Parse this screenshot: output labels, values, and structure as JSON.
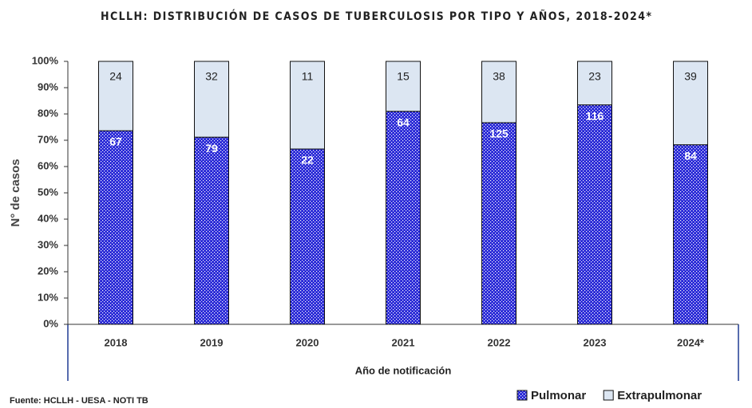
{
  "chart_data": {
    "type": "bar",
    "stacking": "percent",
    "title": "HCLLH: DISTRIBUCIÓN DE CASOS DE TUBERCULOSIS POR TIPO Y AÑOS, 2018-2024*",
    "x_label": "Año de notificación",
    "y_label": "N° de casos",
    "source": "Fuente: HCLLH - UESA - NOTI TB",
    "categories": [
      "2018",
      "2019",
      "2020",
      "2021",
      "2022",
      "2023",
      "2024*"
    ],
    "series": [
      {
        "name": "Pulmonar",
        "color": "#2626d6",
        "values": [
          67,
          79,
          22,
          64,
          125,
          116,
          84
        ]
      },
      {
        "name": "Extrapulmonar",
        "color": "#dce6f2",
        "values": [
          24,
          32,
          11,
          15,
          38,
          23,
          39
        ]
      }
    ],
    "ylim": [
      0,
      100
    ],
    "yticks": [
      {
        "value": 0,
        "label": "0%"
      },
      {
        "value": 10,
        "label": "10%"
      },
      {
        "value": 20,
        "label": "20%"
      },
      {
        "value": 30,
        "label": "30%"
      },
      {
        "value": 40,
        "label": "40%"
      },
      {
        "value": 50,
        "label": "50%"
      },
      {
        "value": 60,
        "label": "60%"
      },
      {
        "value": 70,
        "label": "70%"
      },
      {
        "value": 80,
        "label": "80%"
      },
      {
        "value": 90,
        "label": "90%"
      },
      {
        "value": 100,
        "label": "100%"
      }
    ],
    "legend": "bottom-right"
  }
}
